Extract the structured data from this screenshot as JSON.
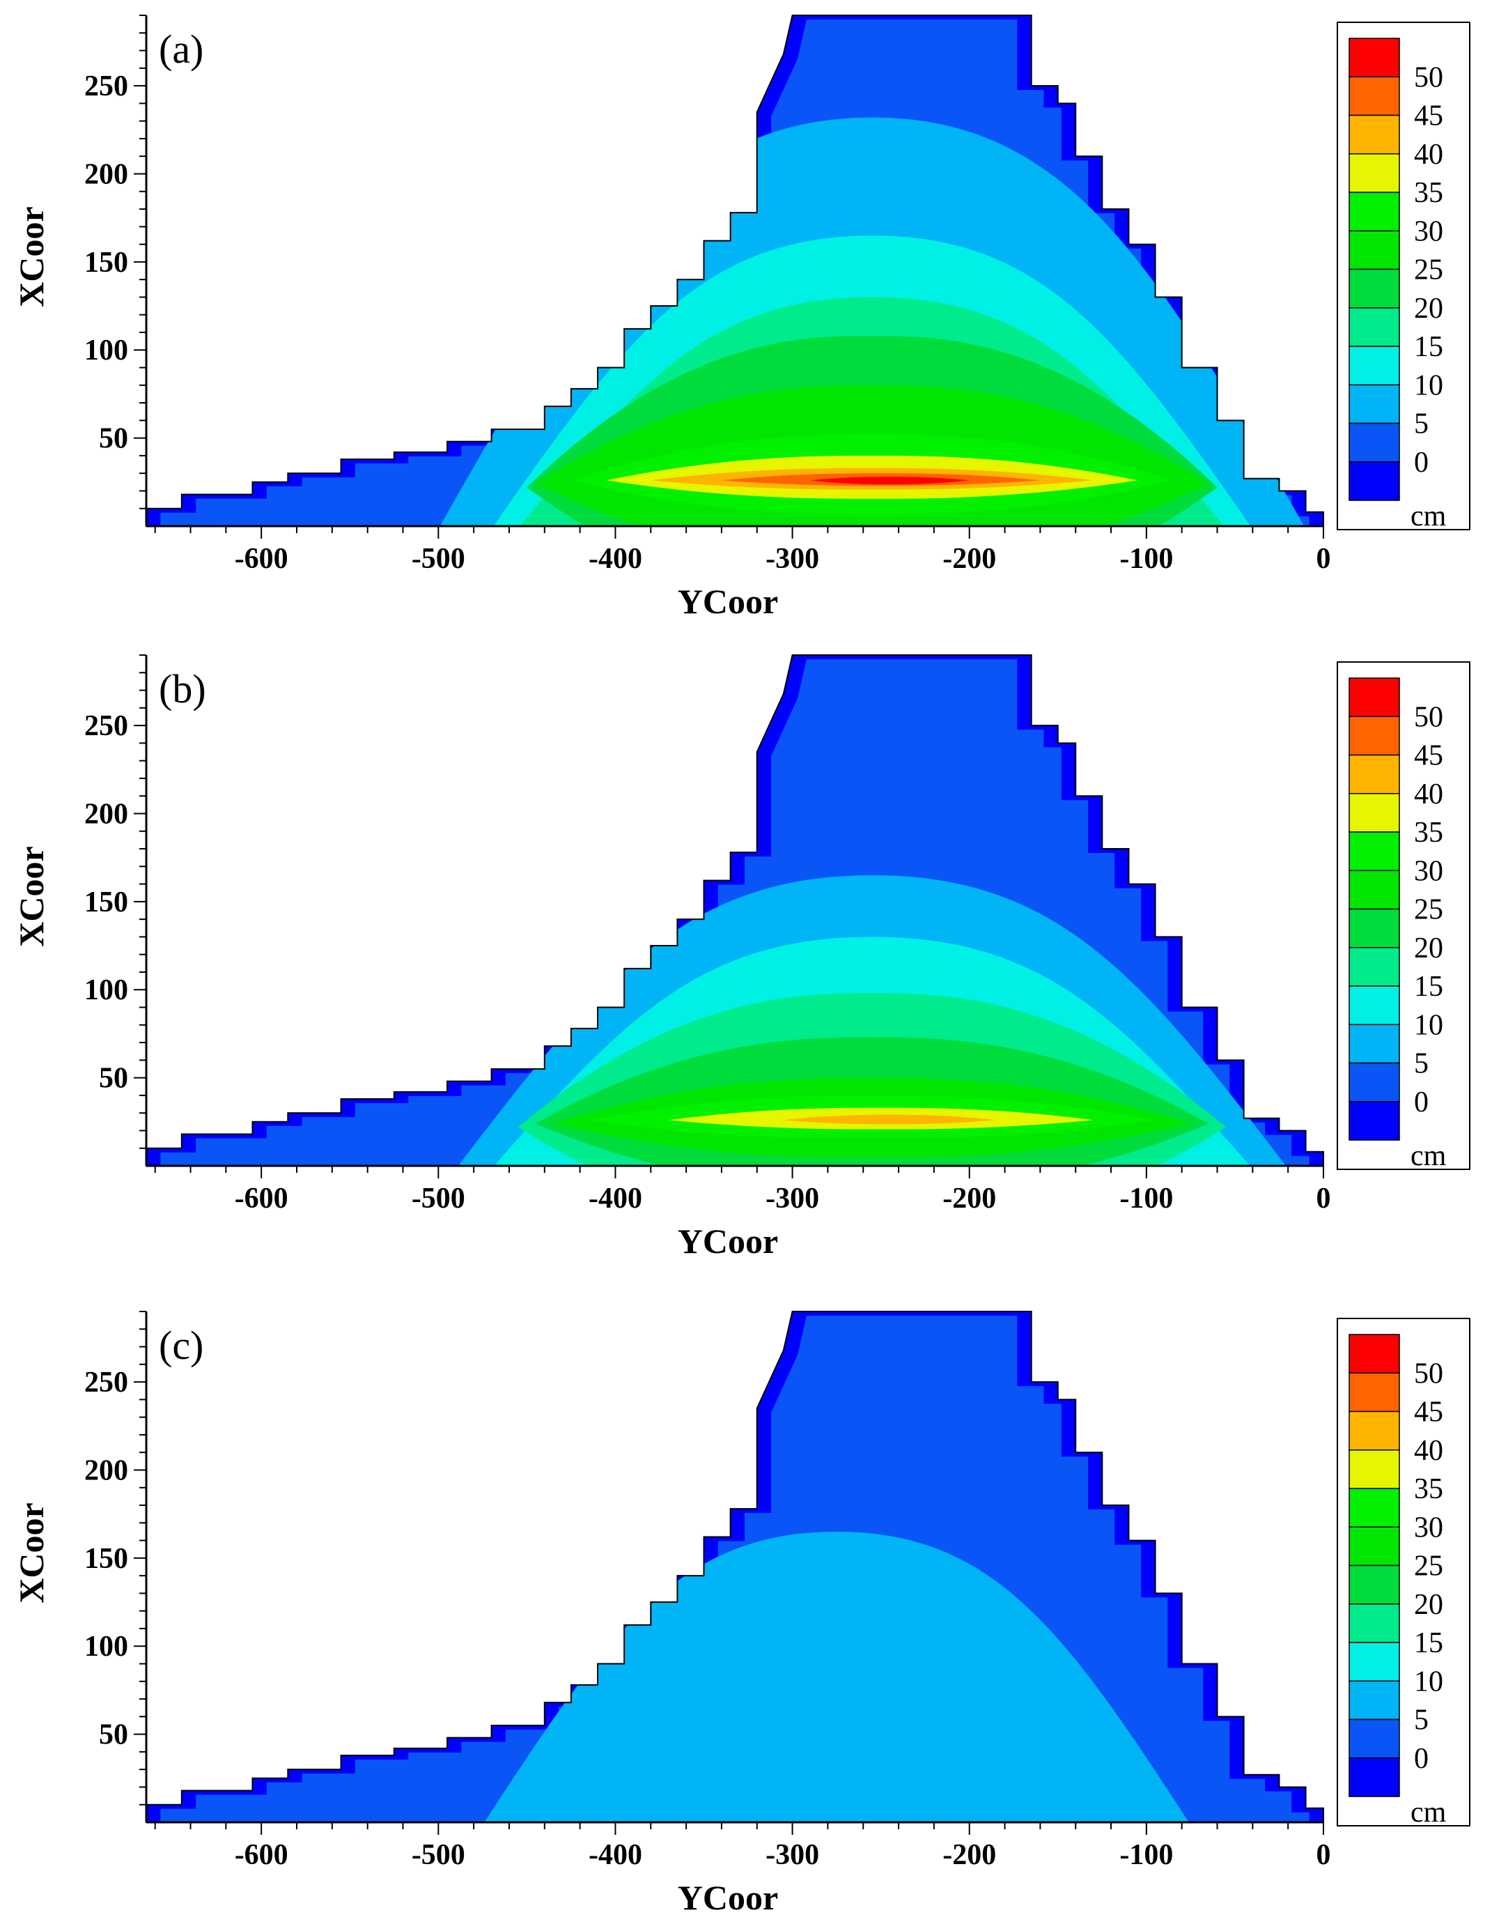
{
  "figure": {
    "description_none": "",
    "legend_unit": "cm",
    "legend_levels": [
      0,
      5,
      10,
      15,
      20,
      25,
      30,
      35,
      40,
      45,
      50
    ],
    "legend_colors": [
      "#0000ff",
      "#0a55f5",
      "#00b4f5",
      "#00f0e6",
      "#00eb8c",
      "#00dc3c",
      "#00e600",
      "#00f000",
      "#e6f500",
      "#ffb400",
      "#ff6400",
      "#ff0000"
    ],
    "level_color_map": {
      "0-5": "#0a55f5",
      "5-10": "#00b4f5",
      "10-15": "#00f0e6",
      "15-20": "#00eb8c",
      "20-25": "#00dc3c",
      "25-30": "#00e600",
      "30-35": "#00f000",
      "35-40": "#e6f500",
      "40-45": "#ffb400",
      "45-50": "#ff6400",
      "50+": "#ff0000"
    },
    "outside_color": "#0000ff"
  },
  "chart_data": [
    {
      "type": "heatmap",
      "title": "(a)",
      "xlabel": "YCoor",
      "ylabel": "XCoor",
      "xlim": [
        -665,
        0
      ],
      "ylim": [
        0,
        290
      ],
      "xticks": [
        -600,
        -500,
        -400,
        -300,
        -200,
        -100,
        0
      ],
      "yticks": [
        50,
        100,
        150,
        200,
        250
      ],
      "colorbar_label": "cm",
      "colorbar_ticks": [
        0,
        5,
        10,
        15,
        20,
        25,
        30,
        35,
        40,
        45,
        50
      ],
      "peak_value": 50,
      "peak_location": {
        "ycoor": -250,
        "xcoor": 25
      },
      "contours": [
        {
          "level": "5-10",
          "ycenter": -255,
          "xcenter": 20,
          "yhalf": 245,
          "xtop": 232
        },
        {
          "level": "10-15",
          "ycenter": -255,
          "xcenter": 22,
          "yhalf": 215,
          "xtop": 165
        },
        {
          "level": "15-20",
          "ycenter": -255,
          "xcenter": 22,
          "yhalf": 200,
          "xtop": 130
        },
        {
          "level": "20-25",
          "ycenter": -255,
          "xcenter": 22,
          "yhalf": 195,
          "xtop": 108
        },
        {
          "level": "25-30",
          "ycenter": -255,
          "xcenter": 24,
          "yhalf": 190,
          "xtop": 80
        },
        {
          "level": "30-35",
          "ycenter": -255,
          "xcenter": 26,
          "yhalf": 170,
          "xtop": 52
        },
        {
          "level": "35-40",
          "ycenter": -255,
          "xcenter": 26,
          "yhalf": 150,
          "xtop": 40
        },
        {
          "level": "40-45",
          "ycenter": -255,
          "xcenter": 26,
          "yhalf": 125,
          "xtop": 33
        },
        {
          "level": "45-50",
          "ycenter": -250,
          "xcenter": 26,
          "yhalf": 90,
          "xtop": 30
        },
        {
          "level": "50+",
          "ycenter": -245,
          "xcenter": 26,
          "yhalf": 45,
          "xtop": 28
        }
      ]
    },
    {
      "type": "heatmap",
      "title": "(b)",
      "xlabel": "YCoor",
      "ylabel": "XCoor",
      "xlim": [
        -665,
        0
      ],
      "ylim": [
        0,
        290
      ],
      "xticks": [
        -600,
        -500,
        -400,
        -300,
        -200,
        -100,
        0
      ],
      "yticks": [
        50,
        100,
        150,
        200,
        250
      ],
      "colorbar_label": "cm",
      "colorbar_ticks": [
        0,
        5,
        10,
        15,
        20,
        25,
        30,
        35,
        40,
        45,
        50
      ],
      "peak_value": 45,
      "peak_location": {
        "ycoor": -250,
        "xcoor": 25
      },
      "contours": [
        {
          "level": "5-10",
          "ycenter": -255,
          "xcenter": 20,
          "yhalf": 235,
          "xtop": 165
        },
        {
          "level": "10-15",
          "ycenter": -255,
          "xcenter": 22,
          "yhalf": 215,
          "xtop": 130
        },
        {
          "level": "15-20",
          "ycenter": -255,
          "xcenter": 22,
          "yhalf": 200,
          "xtop": 98
        },
        {
          "level": "20-25",
          "ycenter": -255,
          "xcenter": 24,
          "yhalf": 190,
          "xtop": 73
        },
        {
          "level": "25-30",
          "ycenter": -255,
          "xcenter": 24,
          "yhalf": 180,
          "xtop": 50
        },
        {
          "level": "30-35",
          "ycenter": -255,
          "xcenter": 26,
          "yhalf": 160,
          "xtop": 40
        },
        {
          "level": "35-40",
          "ycenter": -250,
          "xcenter": 26,
          "yhalf": 120,
          "xtop": 33
        },
        {
          "level": "40-45",
          "ycenter": -245,
          "xcenter": 26,
          "yhalf": 60,
          "xtop": 29
        }
      ]
    },
    {
      "type": "heatmap",
      "title": "(c)",
      "xlabel": "YCoor",
      "ylabel": "XCoor",
      "xlim": [
        -665,
        0
      ],
      "ylim": [
        0,
        290
      ],
      "xticks": [
        -600,
        -500,
        -400,
        -300,
        -200,
        -100,
        0
      ],
      "yticks": [
        50,
        100,
        150,
        200,
        250
      ],
      "colorbar_label": "cm",
      "colorbar_ticks": [
        0,
        5,
        10,
        15,
        20,
        25,
        30,
        35,
        40,
        45,
        50
      ],
      "peak_value": 10,
      "peak_location": {
        "ycoor": -250,
        "xcoor": 60
      },
      "contours": [
        {
          "level": "5-10",
          "ycenter": -275,
          "xcenter": 10,
          "yhalf": 200,
          "xtop": 165
        }
      ]
    }
  ],
  "domain_outline_top": [
    [
      -665,
      10
    ],
    [
      -645,
      10
    ],
    [
      -645,
      18
    ],
    [
      -605,
      18
    ],
    [
      -605,
      25
    ],
    [
      -585,
      25
    ],
    [
      -585,
      30
    ],
    [
      -555,
      30
    ],
    [
      -555,
      38
    ],
    [
      -525,
      38
    ],
    [
      -525,
      42
    ],
    [
      -495,
      42
    ],
    [
      -495,
      48
    ],
    [
      -470,
      48
    ],
    [
      -470,
      55
    ],
    [
      -440,
      55
    ],
    [
      -440,
      68
    ],
    [
      -425,
      68
    ],
    [
      -425,
      78
    ],
    [
      -410,
      78
    ],
    [
      -410,
      90
    ],
    [
      -395,
      90
    ],
    [
      -395,
      112
    ],
    [
      -380,
      112
    ],
    [
      -380,
      125
    ],
    [
      -365,
      125
    ],
    [
      -365,
      140
    ],
    [
      -350,
      140
    ],
    [
      -350,
      162
    ],
    [
      -335,
      162
    ],
    [
      -335,
      178
    ],
    [
      -320,
      178
    ],
    [
      -320,
      235
    ],
    [
      -305,
      268
    ],
    [
      -300,
      290
    ],
    [
      -190,
      290
    ],
    [
      -165,
      290
    ],
    [
      -165,
      250
    ],
    [
      -150,
      250
    ],
    [
      -150,
      240
    ],
    [
      -140,
      240
    ],
    [
      -140,
      210
    ],
    [
      -125,
      210
    ],
    [
      -125,
      180
    ],
    [
      -110,
      180
    ],
    [
      -110,
      160
    ],
    [
      -95,
      160
    ],
    [
      -95,
      130
    ],
    [
      -80,
      130
    ],
    [
      -80,
      90
    ],
    [
      -60,
      90
    ],
    [
      -60,
      60
    ],
    [
      -45,
      60
    ],
    [
      -45,
      27
    ],
    [
      -25,
      27
    ],
    [
      -25,
      20
    ],
    [
      -10,
      20
    ],
    [
      -10,
      8
    ],
    [
      0,
      8
    ],
    [
      0,
      0
    ],
    [
      -665,
      0
    ]
  ]
}
